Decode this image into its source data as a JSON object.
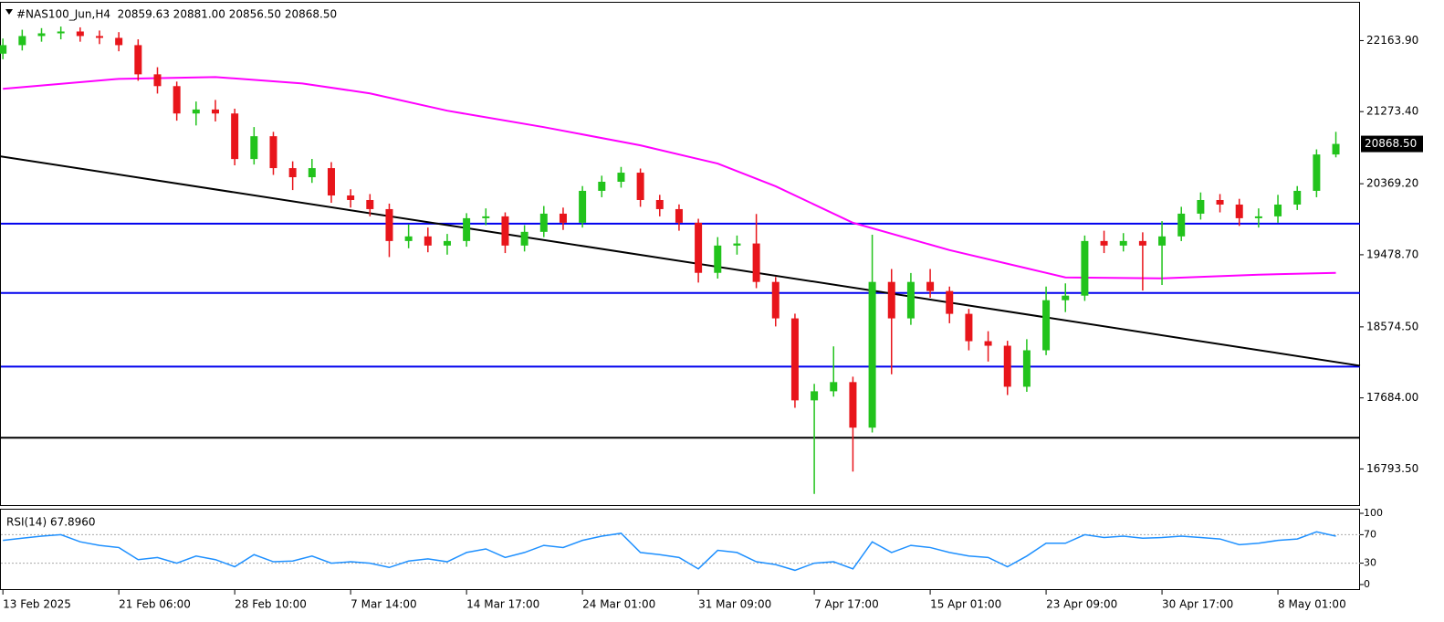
{
  "chart_data": [
    {
      "type": "candlestick",
      "title": "#NAS100_Jun,H4  20859.63 20881.00 20856.50 20868.50",
      "x": [
        0,
        1,
        2,
        3,
        4,
        5,
        6,
        7,
        8,
        9,
        10,
        11,
        12,
        13,
        14,
        15,
        16,
        17,
        18,
        19,
        20,
        21,
        22,
        23,
        24,
        25,
        26,
        27,
        28,
        29,
        30,
        31,
        32,
        33,
        34,
        35,
        36,
        37,
        38,
        39,
        40,
        41,
        42,
        43,
        44,
        45,
        46,
        47,
        48,
        49,
        50,
        51,
        52,
        53,
        54,
        55,
        56,
        57,
        58,
        59,
        60,
        61,
        62,
        63,
        64,
        65,
        66,
        67,
        68,
        69
      ],
      "open": [
        22000,
        22107,
        22221,
        22255,
        22278,
        22221,
        22198,
        22107,
        21741,
        21593,
        21250,
        21300,
        21250,
        20679,
        20965,
        20565,
        20451,
        20565,
        20222,
        20165,
        20051,
        19651,
        19709,
        19594,
        19651,
        19937,
        19960,
        19594,
        19766,
        19994,
        19880,
        20280,
        20394,
        20508,
        20165,
        20051,
        19880,
        19252,
        19594,
        19620,
        19138,
        18681,
        17653,
        17767,
        17882,
        17311,
        19138,
        18681,
        19138,
        19024,
        18738,
        18395,
        18338,
        17824,
        18281,
        18909,
        18966,
        19651,
        19594,
        19651,
        19594,
        19709,
        19994,
        20165,
        20108,
        19937,
        19960,
        20108,
        20280,
        20736
      ],
      "high": [
        22190,
        22300,
        22320,
        22340,
        22330,
        22290,
        22270,
        22180,
        21830,
        21650,
        21400,
        21420,
        21310,
        21080,
        21020,
        20650,
        20680,
        20640,
        20300,
        20240,
        20120,
        19860,
        19820,
        19740,
        20000,
        20060,
        20010,
        19850,
        20090,
        20070,
        20340,
        20470,
        20580,
        20560,
        20230,
        20110,
        19930,
        19700,
        19720,
        19990,
        19200,
        18740,
        17860,
        18330,
        17950,
        19730,
        19300,
        19250,
        19300,
        19080,
        18800,
        18520,
        18400,
        18420,
        19080,
        19120,
        19720,
        19780,
        19750,
        19760,
        19900,
        20080,
        20260,
        20240,
        20180,
        20060,
        20230,
        20340,
        20800,
        21020
      ],
      "low": [
        21930,
        22040,
        22150,
        22180,
        22150,
        22120,
        22030,
        21660,
        21500,
        21160,
        21100,
        21150,
        20600,
        20610,
        20480,
        20290,
        20380,
        20130,
        20070,
        19960,
        19450,
        19560,
        19510,
        19480,
        19580,
        19850,
        19500,
        19520,
        19700,
        19790,
        19820,
        20200,
        20320,
        20080,
        19960,
        19780,
        19130,
        19180,
        19480,
        19060,
        18580,
        17560,
        16480,
        17700,
        16760,
        17250,
        17980,
        18600,
        18940,
        18620,
        18280,
        18140,
        17720,
        17760,
        18220,
        18760,
        18900,
        19500,
        19520,
        19030,
        19100,
        19650,
        19920,
        20010,
        19840,
        19820,
        19880,
        20040,
        20200,
        20700
      ],
      "close": [
        22107,
        22221,
        22255,
        22278,
        22221,
        22198,
        22107,
        21741,
        21593,
        21250,
        21300,
        21250,
        20679,
        20965,
        20565,
        20451,
        20565,
        20222,
        20165,
        20051,
        19651,
        19709,
        19594,
        19651,
        19937,
        19960,
        19594,
        19766,
        19994,
        19880,
        20280,
        20394,
        20508,
        20165,
        20051,
        19880,
        19252,
        19594,
        19620,
        19138,
        18681,
        17653,
        17767,
        17882,
        17311,
        19138,
        18681,
        19138,
        19024,
        18738,
        18395,
        18338,
        17824,
        18281,
        18909,
        18966,
        19651,
        19594,
        19651,
        19594,
        19709,
        19994,
        20165,
        20108,
        19937,
        19960,
        20108,
        20280,
        20736,
        20868.5
      ],
      "up_color": "#22c31c",
      "down_color": "#e8151b",
      "moving_average": {
        "color": "#ff00ff",
        "x": [
          0,
          6,
          11,
          15.5,
          19,
          23,
          28,
          33,
          37,
          40,
          44,
          49,
          53,
          55,
          60,
          65,
          69
        ],
        "values": [
          21559,
          21684,
          21707,
          21627,
          21502,
          21285,
          21079,
          20851,
          20622,
          20337,
          19880,
          19537,
          19309,
          19195,
          19183,
          19229,
          19252
        ]
      },
      "trendline": {
        "color": "#000000",
        "x": [
          -0.15,
          70.25
        ],
        "values": [
          20714,
          18087
        ]
      },
      "horizontal_lines": [
        {
          "value": 19868,
          "color": "#0000ee"
        },
        {
          "value": 18999,
          "color": "#0000ee"
        },
        {
          "value": 18076,
          "color": "#0000ee"
        },
        {
          "value": 17185,
          "color": "#000000"
        }
      ],
      "price_marker": {
        "value": 20868.5,
        "label": "20868.50"
      },
      "xlim": [
        -0.15,
        70.25
      ],
      "ylim": [
        16340,
        22650
      ],
      "yticks": [
        {
          "value": 22163.9,
          "label": "22163.90"
        },
        {
          "value": 21273.4,
          "label": "21273.40"
        },
        {
          "value": 20369.2,
          "label": "20369.20"
        },
        {
          "value": 19478.7,
          "label": "19478.70"
        },
        {
          "value": 18574.5,
          "label": "18574.50"
        },
        {
          "value": 17684,
          "label": "17684.00"
        },
        {
          "value": 16793.5,
          "label": "16793.50"
        }
      ],
      "xticks": [
        {
          "value": 0,
          "label": "13 Feb 2025"
        },
        {
          "value": 6,
          "label": "21 Feb 06:00"
        },
        {
          "value": 12,
          "label": "28 Feb 10:00"
        },
        {
          "value": 18,
          "label": "7 Mar 14:00"
        },
        {
          "value": 24,
          "label": "14 Mar 17:00"
        },
        {
          "value": 30,
          "label": "24 Mar 01:00"
        },
        {
          "value": 36,
          "label": "31 Mar 09:00"
        },
        {
          "value": 42,
          "label": "7 Apr 17:00"
        },
        {
          "value": 48,
          "label": "15 Apr 01:00"
        },
        {
          "value": 54,
          "label": "23 Apr 09:00"
        },
        {
          "value": 60,
          "label": "30 Apr 17:00"
        },
        {
          "value": 66,
          "label": "8 May 01:00"
        }
      ]
    },
    {
      "type": "line",
      "title": "RSI(14) 67.8960",
      "color": "#1e90ff",
      "x": [
        0,
        1,
        2,
        3,
        4,
        5,
        6,
        7,
        8,
        9,
        10,
        11,
        12,
        13,
        14,
        15,
        16,
        17,
        18,
        19,
        20,
        21,
        22,
        23,
        24,
        25,
        26,
        27,
        28,
        29,
        30,
        31,
        32,
        33,
        34,
        35,
        36,
        37,
        38,
        39,
        40,
        41,
        42,
        43,
        44,
        45,
        46,
        47,
        48,
        49,
        50,
        51,
        52,
        53,
        54,
        55,
        56,
        57,
        58,
        59,
        60,
        61,
        62,
        63,
        64,
        65,
        66,
        67,
        68,
        69
      ],
      "values": [
        62,
        65,
        68,
        70,
        60,
        55,
        52,
        35,
        38,
        30,
        40,
        35,
        25,
        42,
        32,
        33,
        40,
        30,
        32,
        30,
        24,
        33,
        36,
        32,
        45,
        50,
        38,
        45,
        55,
        52,
        62,
        68,
        72,
        45,
        42,
        38,
        22,
        48,
        45,
        32,
        28,
        20,
        30,
        32,
        22,
        60,
        45,
        55,
        52,
        45,
        40,
        38,
        25,
        40,
        58,
        58,
        70,
        66,
        68,
        65,
        66,
        68,
        66,
        64,
        56,
        58,
        62,
        64,
        74,
        67.896
      ],
      "xlim": [
        -0.15,
        70.25
      ],
      "ylim": [
        0,
        100
      ],
      "yticks": [
        100,
        70,
        30,
        0
      ],
      "level_lines": [
        70,
        30
      ]
    }
  ]
}
